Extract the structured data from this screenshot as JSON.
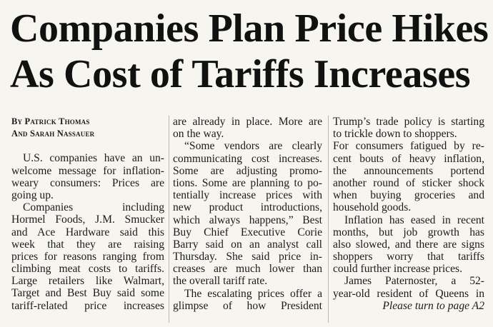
{
  "headline": {
    "line1": "Companies Plan Price Hikes",
    "line2": "As Cost of Tariffs Increases"
  },
  "byline": {
    "line1": "By Patrick Thomas",
    "line2": "And Sarah Nassauer"
  },
  "columns": {
    "col1": [
      "U.S. companies have an un-",
      "welcome message for inflation-",
      "weary consumers: Prices are",
      "going up.",
      "Companies including",
      "Hormel Foods, J.M. Smucker",
      "and Ace Hardware said this",
      "week that they are raising",
      "prices for reasons ranging from",
      "climbing meat costs to tariffs.",
      "Large retailers like Walmart,",
      "Target and Best Buy said some",
      "tariff-related price increases"
    ],
    "col2": [
      "are already in place. More are",
      "on the way.",
      "“Some vendors are clearly",
      "communicating cost increases.",
      "Some are adjusting promo-",
      "tions. Some are planning to po-",
      "tentially increase prices with",
      "new product introductions,",
      "which always happens,” Best",
      "Buy Chief Executive Corie",
      "Barry said on an analyst call",
      "Thursday. She said price in-",
      "creases are much lower than",
      "the overall tariff rate.",
      "The escalating prices offer a",
      "glimpse of how President"
    ],
    "col3": [
      "Trump’s trade policy is starting",
      "to trickle down to shoppers.",
      "For consumers fatigued by re-",
      "cent bouts of heavy inflation,",
      "the announcements portend",
      "another round of sticker shock",
      "when buying groceries and",
      "household goods.",
      "Inflation has eased in recent",
      "months, but job growth has",
      "also slowed, and there are signs",
      "shoppers worry that tariffs",
      "could further increase prices.",
      "James Paternoster, a 52-",
      "year-old resident of Queens in"
    ],
    "jump": "Please turn to page A2"
  }
}
